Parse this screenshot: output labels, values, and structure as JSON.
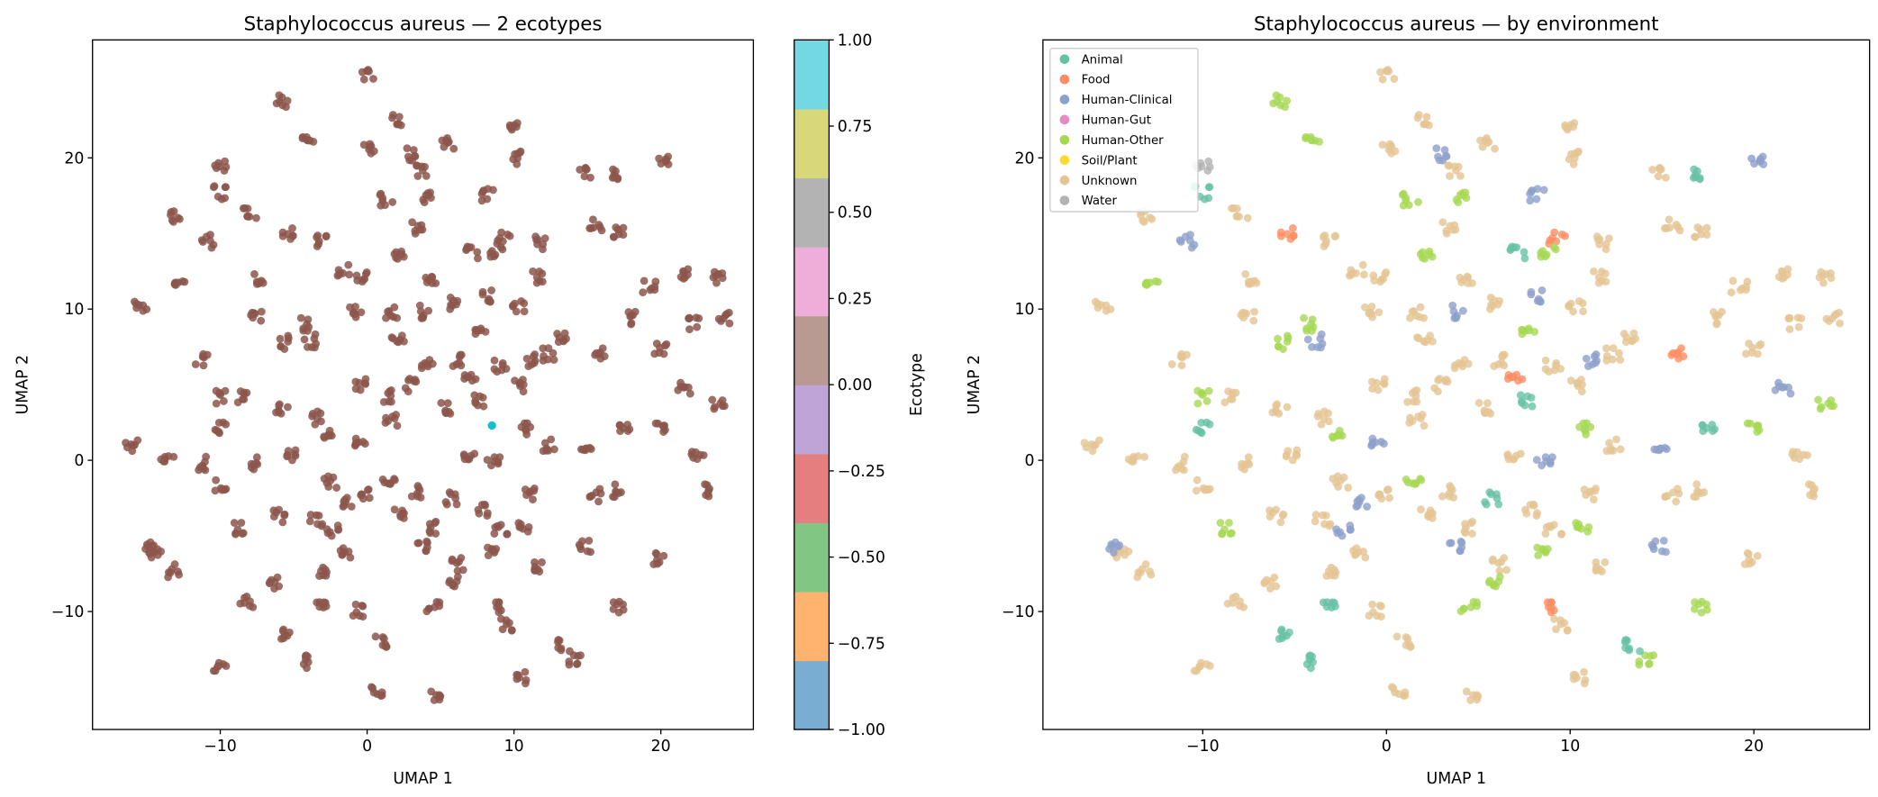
{
  "chart_data": [
    {
      "type": "scatter",
      "title": "Staphylococcus aureus — 2 ecotypes",
      "xlabel": "UMAP 1",
      "ylabel": "UMAP 2",
      "xlim": [
        -18.7,
        26.3
      ],
      "ylim": [
        -17.8,
        27.8
      ],
      "xticks": [
        "−10",
        "0",
        "10",
        "20"
      ],
      "xtick_values": [
        -10,
        0,
        10,
        20
      ],
      "yticks": [
        "−10",
        "0",
        "10",
        "20"
      ],
      "ytick_values": [
        -10,
        0,
        10,
        20
      ],
      "grid": false,
      "color_by": "ecotype",
      "colors": {
        "ecotype_0": "#8c564b",
        "ecotype_1": "#17becf"
      },
      "ecotype_1_points": [
        [
          8.5,
          2.3
        ]
      ],
      "colorbar": {
        "label": "Ecotype",
        "range": [
          -1,
          1
        ],
        "ticks": [
          "−1.00",
          "−0.75",
          "−0.50",
          "−0.25",
          "0.00",
          "0.25",
          "0.50",
          "0.75",
          "1.00"
        ],
        "tick_values": [
          -1,
          -0.75,
          -0.5,
          -0.25,
          0,
          0.25,
          0.5,
          0.75,
          1
        ],
        "segment_colors": [
          "#79add2",
          "#ffb36e",
          "#82c683",
          "#e57e7e",
          "#bfa5d7",
          "#b99a93",
          "#efadda",
          "#b3b3b3",
          "#d8d87b",
          "#74d8e2"
        ]
      }
    },
    {
      "type": "scatter",
      "title": "Staphylococcus aureus — by environment",
      "xlabel": "UMAP 1",
      "ylabel": "UMAP 2",
      "xlim": [
        -18.7,
        26.3
      ],
      "ylim": [
        -17.8,
        27.8
      ],
      "xticks": [
        "−10",
        "0",
        "10",
        "20"
      ],
      "xtick_values": [
        -10,
        0,
        10,
        20
      ],
      "yticks": [
        "−10",
        "0",
        "10",
        "20"
      ],
      "ytick_values": [
        -10,
        0,
        10,
        20
      ],
      "grid": false,
      "legend_placement": "upper-left",
      "legend": [
        {
          "label": "Animal",
          "color": "#66c2a5"
        },
        {
          "label": "Food",
          "color": "#fc8d62"
        },
        {
          "label": "Human-Clinical",
          "color": "#8da0cb"
        },
        {
          "label": "Human-Gut",
          "color": "#e78ac3"
        },
        {
          "label": "Human-Other",
          "color": "#a6d854"
        },
        {
          "label": "Soil/Plant",
          "color": "#ffd92f"
        },
        {
          "label": "Unknown",
          "color": "#e5c494"
        },
        {
          "label": "Water",
          "color": "#b3b3b3"
        }
      ]
    }
  ],
  "points": [
    [
      0,
      25.5,
      6
    ],
    [
      -5.8,
      23.8,
      4
    ],
    [
      2.1,
      22.5,
      6
    ],
    [
      10,
      22.1,
      6
    ],
    [
      0.2,
      20.5,
      6
    ],
    [
      5.5,
      21,
      6
    ],
    [
      -10,
      19.5,
      7
    ],
    [
      -4,
      21.2,
      4
    ],
    [
      2.9,
      20.2,
      2
    ],
    [
      3.8,
      19.1,
      6
    ],
    [
      10,
      20,
      6
    ],
    [
      14.9,
      19,
      6
    ],
    [
      20.3,
      19.9,
      2
    ],
    [
      -10,
      17.7,
      0
    ],
    [
      -13,
      16.1,
      6
    ],
    [
      8.2,
      17.5,
      2
    ],
    [
      1.3,
      17.2,
      4
    ],
    [
      4,
      17.3,
      4
    ],
    [
      -8,
      16.3,
      6
    ],
    [
      -5.4,
      14.9,
      1
    ],
    [
      -3.2,
      14.6,
      6
    ],
    [
      3.5,
      15.3,
      6
    ],
    [
      9.3,
      14.7,
      1
    ],
    [
      11.9,
      14.4,
      6
    ],
    [
      15.6,
      15.6,
      6
    ],
    [
      17,
      15.2,
      6
    ],
    [
      -12.8,
      12,
      4
    ],
    [
      -10.8,
      14.5,
      2
    ],
    [
      -7.4,
      11.9,
      6
    ],
    [
      -1.6,
      12.5,
      6
    ],
    [
      -0.4,
      12.1,
      6
    ],
    [
      2.1,
      13.7,
      4
    ],
    [
      4.4,
      12,
      6
    ],
    [
      7.1,
      13.7,
      0
    ],
    [
      8.8,
      13.9,
      4
    ],
    [
      11.7,
      12.1,
      6
    ],
    [
      19.2,
      11.5,
      6
    ],
    [
      21.6,
      12.3,
      6
    ],
    [
      24,
      12.1,
      6
    ],
    [
      8.3,
      10.9,
      2
    ],
    [
      10.3,
      10.2,
      6
    ],
    [
      -15.4,
      10.3,
      6
    ],
    [
      -7.5,
      9.4,
      6
    ],
    [
      -4.3,
      9,
      4
    ],
    [
      -0.8,
      9.8,
      6
    ],
    [
      1.6,
      9.8,
      6
    ],
    [
      3.8,
      9.8,
      2
    ],
    [
      5.8,
      10.4,
      6
    ],
    [
      17.9,
      9.4,
      6
    ],
    [
      22.2,
      9,
      6
    ],
    [
      24.3,
      9.4,
      6
    ],
    [
      -11.3,
      6.6,
      6
    ],
    [
      -5.7,
      7.8,
      4
    ],
    [
      -3.9,
      7.9,
      2
    ],
    [
      2.1,
      8.2,
      6
    ],
    [
      7.7,
      8.6,
      4
    ],
    [
      13.3,
      8.2,
      6
    ],
    [
      12.3,
      7,
      6
    ],
    [
      11.1,
      6.6,
      2
    ],
    [
      20,
      7.4,
      6
    ],
    [
      -8.6,
      4.2,
      6
    ],
    [
      -5.8,
      3.4,
      6
    ],
    [
      -3.5,
      2.8,
      6
    ],
    [
      -2.5,
      1.8,
      4
    ],
    [
      -10,
      4.2,
      4
    ],
    [
      1.2,
      4.2,
      6
    ],
    [
      -0.4,
      5,
      6
    ],
    [
      2.9,
      5,
      6
    ],
    [
      4.1,
      6.4,
      6
    ],
    [
      6.3,
      6.6,
      6
    ],
    [
      9.1,
      6.3,
      6
    ],
    [
      10.5,
      5,
      6
    ],
    [
      7.5,
      4,
      0
    ],
    [
      15.8,
      7,
      1
    ],
    [
      7,
      5.7,
      1
    ],
    [
      21.6,
      4.8,
      2
    ],
    [
      23.9,
      3.6,
      4
    ],
    [
      -16,
      1,
      6
    ],
    [
      -10,
      2.2,
      0
    ],
    [
      1.6,
      2.6,
      6
    ],
    [
      5.3,
      3.4,
      6
    ],
    [
      10.9,
      2,
      4
    ],
    [
      12.4,
      1,
      6
    ],
    [
      17.6,
      2.2,
      0
    ],
    [
      20,
      2,
      4
    ],
    [
      -13.6,
      0,
      6
    ],
    [
      -11.1,
      -0.2,
      6
    ],
    [
      -7.8,
      -0.2,
      6
    ],
    [
      -5.3,
      0.4,
      6
    ],
    [
      -0.4,
      1.4,
      2
    ],
    [
      7,
      0.4,
      6
    ],
    [
      8.6,
      -0.2,
      2
    ],
    [
      15,
      0.6,
      2
    ],
    [
      22.5,
      0.4,
      6
    ],
    [
      -14.4,
      -6,
      6
    ],
    [
      -13.2,
      -7.3,
      6
    ],
    [
      -14.8,
      -5.8,
      2
    ],
    [
      -10,
      -1.6,
      6
    ],
    [
      -2.5,
      -1.4,
      6
    ],
    [
      0,
      -2.1,
      6
    ],
    [
      1.5,
      -1.3,
      4
    ],
    [
      3.3,
      -2.1,
      6
    ],
    [
      5.8,
      -2.5,
      0
    ],
    [
      7.8,
      -3.3,
      6
    ],
    [
      9.1,
      -4.5,
      6
    ],
    [
      11.1,
      -2.3,
      6
    ],
    [
      15.6,
      -2.3,
      6
    ],
    [
      16.9,
      -2,
      6
    ],
    [
      23.3,
      -2,
      6
    ],
    [
      -8.6,
      -4.5,
      4
    ],
    [
      -6,
      -3.7,
      6
    ],
    [
      -3.5,
      -3.9,
      6
    ],
    [
      -1.2,
      -2.8,
      2
    ],
    [
      2.3,
      -3.5,
      6
    ],
    [
      4.5,
      -4.5,
      6
    ],
    [
      10.7,
      -4.5,
      4
    ],
    [
      14.8,
      -5.7,
      2
    ],
    [
      -6.2,
      -8.1,
      6
    ],
    [
      -3,
      -7.5,
      6
    ],
    [
      -1.4,
      -6,
      6
    ],
    [
      3.7,
      -5.7,
      2
    ],
    [
      6.2,
      -6.9,
      6
    ],
    [
      8.5,
      -6.1,
      4
    ],
    [
      11.5,
      -7.1,
      6
    ],
    [
      19.8,
      -6.5,
      6
    ],
    [
      -8.2,
      -9.3,
      6
    ],
    [
      -0.7,
      -9.9,
      6
    ],
    [
      -3,
      -9.3,
      0
    ],
    [
      4.5,
      -9.7,
      4
    ],
    [
      9.5,
      -10.9,
      6
    ],
    [
      9.2,
      -9.6,
      1
    ],
    [
      17.1,
      -9.7,
      4
    ],
    [
      -10,
      -13.7,
      6
    ],
    [
      -5.7,
      -11.4,
      0
    ],
    [
      -3.9,
      -13.3,
      0
    ],
    [
      1,
      -12.1,
      6
    ],
    [
      0.6,
      -15.2,
      6
    ],
    [
      4.8,
      -15.6,
      6
    ],
    [
      10.5,
      -14.4,
      6
    ],
    [
      14.1,
      -13.3,
      4
    ],
    [
      13.4,
      -12.3,
      0
    ],
    [
      -2.4,
      -4.7,
      2
    ],
    [
      5.8,
      -8.1,
      4
    ],
    [
      17,
      19,
      0
    ]
  ]
}
